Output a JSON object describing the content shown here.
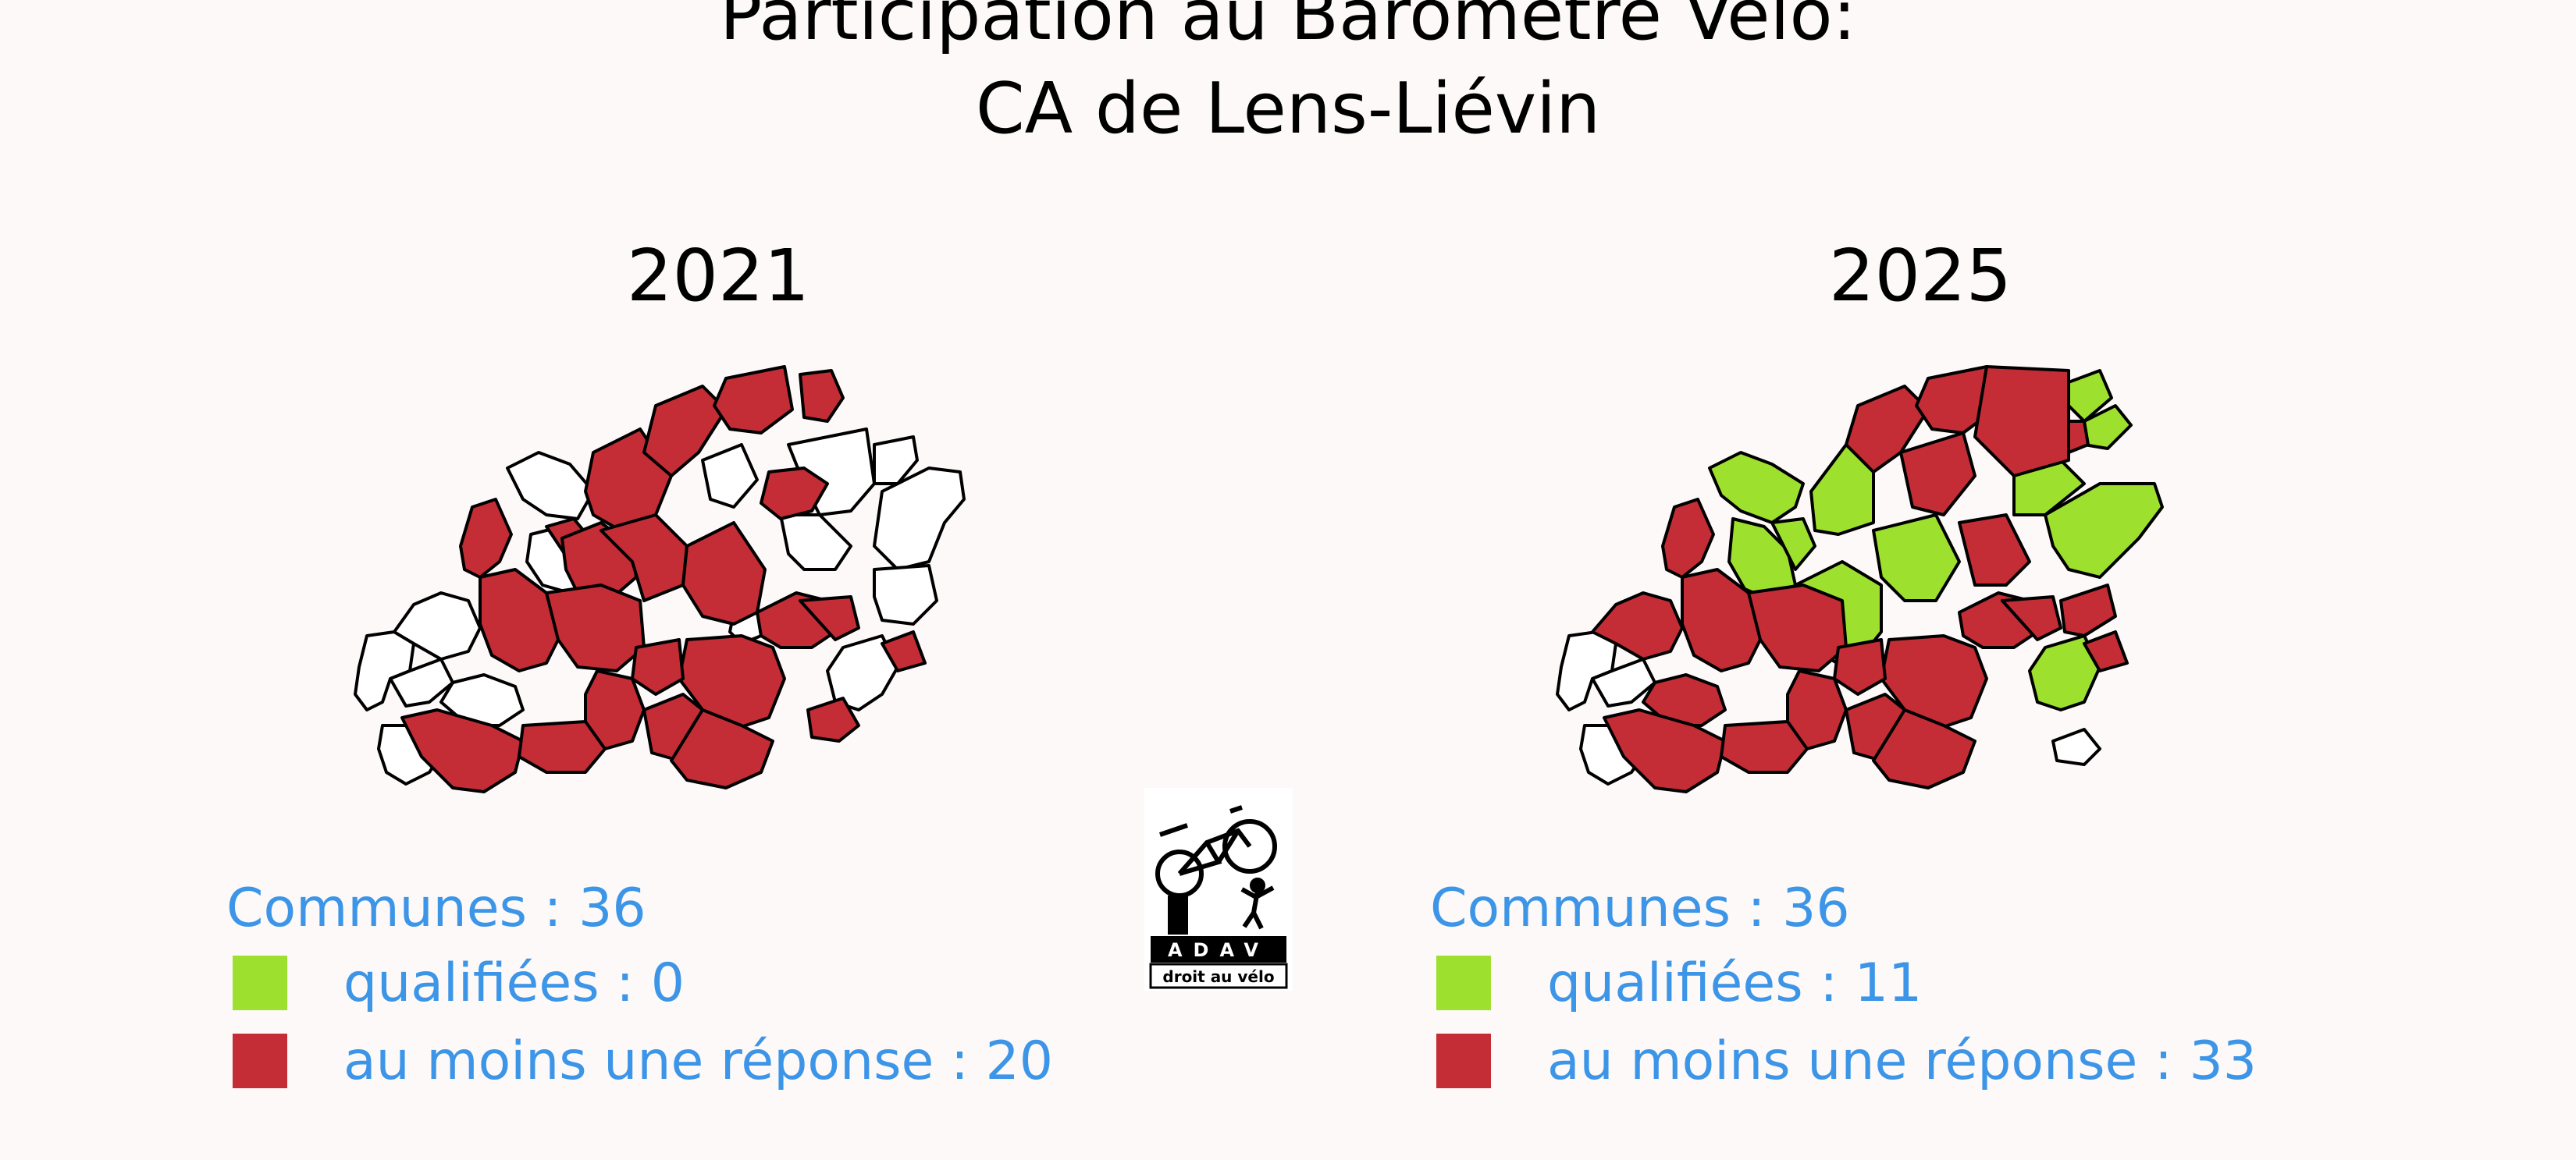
{
  "title_line1": "Participation au Baromètre Vélo:",
  "title_line2": "CA de Lens-Liévin",
  "colors": {
    "qualified": "#9de02e",
    "responded": "#c42d35",
    "none": "#ffffff",
    "legend_text": "#3d95e8"
  },
  "panels": [
    {
      "year": "2021",
      "communes": "Communes : 36",
      "qualified": "qualifiées : 0",
      "responded": "au moins une réponse : 20"
    },
    {
      "year": "2025",
      "communes": "Communes : 36",
      "qualified": "qualifiées : 11",
      "responded": "au moins une réponse : 33"
    }
  ],
  "logo": {
    "name": "ADAV",
    "tagline": "droit au vélo"
  }
}
